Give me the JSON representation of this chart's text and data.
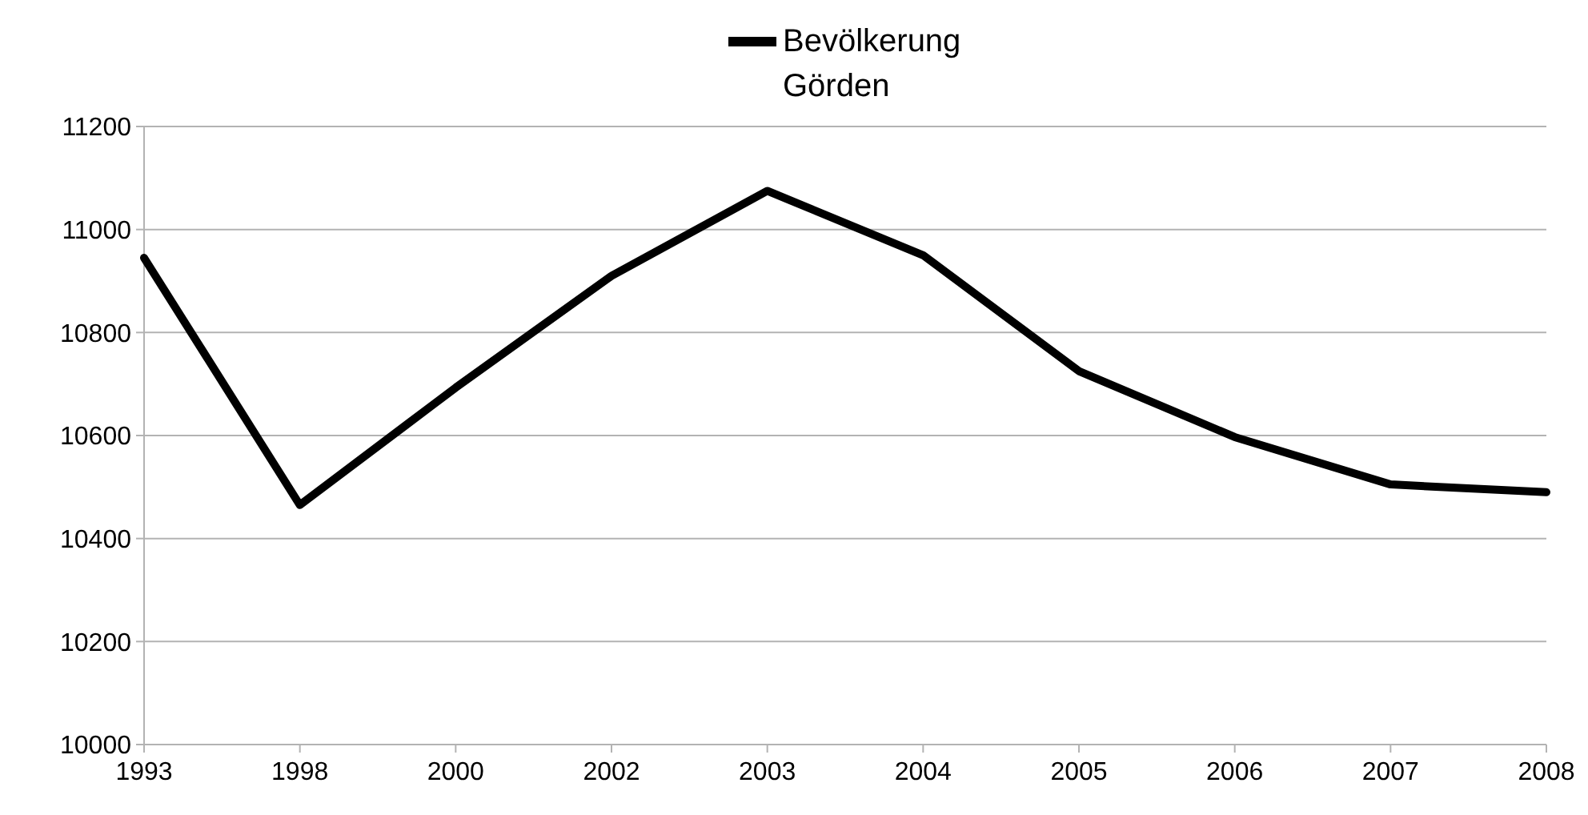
{
  "chart_data": {
    "type": "line",
    "categories": [
      "1993",
      "1998",
      "2000",
      "2002",
      "2003",
      "2004",
      "2005",
      "2006",
      "2007",
      "2008"
    ],
    "series": [
      {
        "name": "Bevölkerung Görden",
        "color": "#000000",
        "values": [
          10945,
          10465,
          10693,
          10910,
          11075,
          10950,
          10725,
          10597,
          10505,
          10490
        ]
      }
    ],
    "ylim": [
      10000,
      11200
    ],
    "yticks": [
      10000,
      10200,
      10400,
      10600,
      10800,
      11000,
      11200
    ],
    "grid": "y",
    "legend": "top",
    "marker": "none",
    "line_style": "solid"
  }
}
